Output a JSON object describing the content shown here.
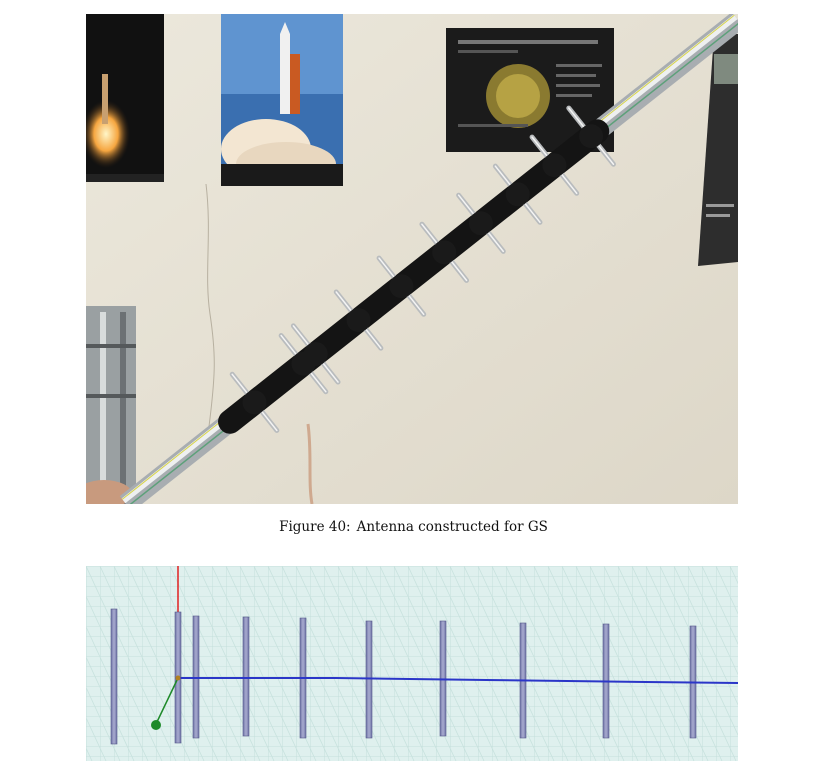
{
  "figure40": {
    "label": "Figure 40:",
    "caption": "Antenna constructed for GS"
  },
  "simulation": {
    "element_count": 10,
    "boom_color": "#2b36c8",
    "element_color": "#8c8fb8",
    "feed_color": "#1e8a2a",
    "axis_color": "#e02020"
  }
}
